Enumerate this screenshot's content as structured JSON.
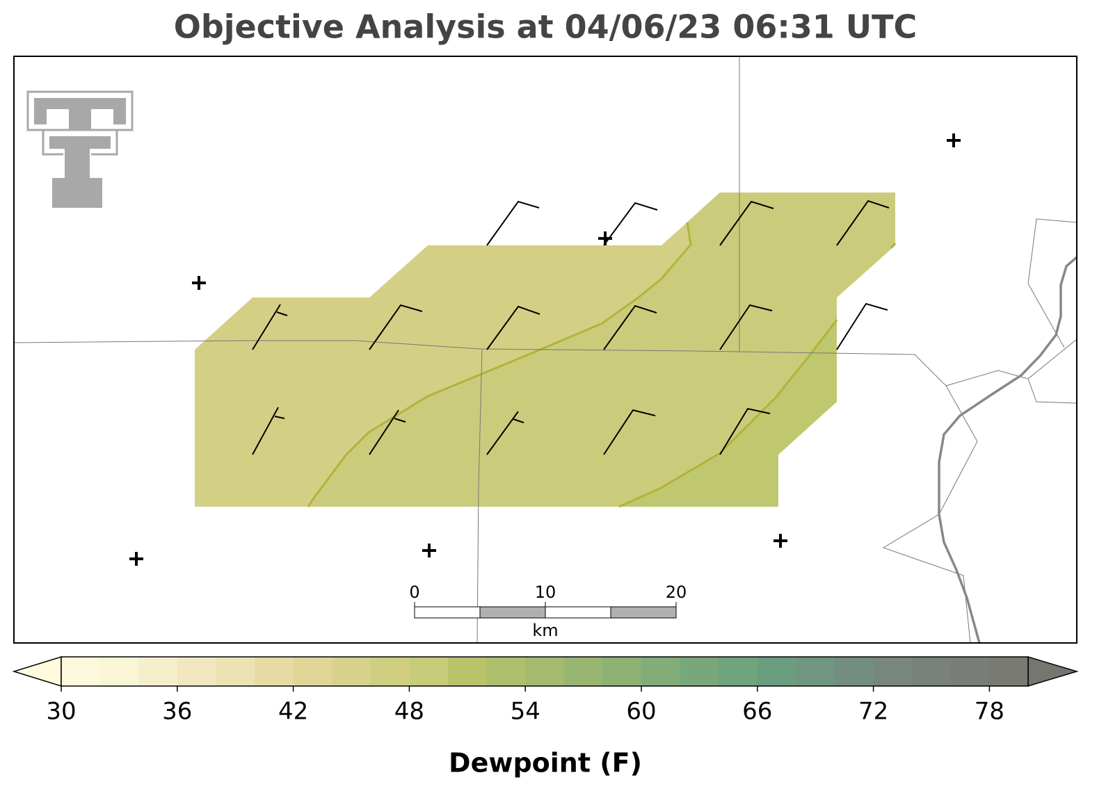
{
  "title": "Objective Analysis at 04/06/23 06:31 UTC",
  "colorbar": {
    "label": "Dewpoint (F)",
    "lim": [
      30,
      80
    ],
    "ticks": [
      30,
      36,
      42,
      48,
      54,
      60,
      66,
      72,
      78
    ],
    "colors": [
      "#fdf9dc",
      "#faf5d5",
      "#f6efcb",
      "#f1e8c0",
      "#ece2b4",
      "#e6dba4",
      "#e0d698",
      "#d8d28c",
      "#d0cf80",
      "#c6cc78",
      "#b8c46a",
      "#aec06c",
      "#a4bb6e",
      "#98b672",
      "#8eb274",
      "#82ad78",
      "#78a87a",
      "#70a47c",
      "#6a9e7e",
      "#6e9680",
      "#738e80",
      "#77877e",
      "#78827a",
      "#787e76",
      "#777b72"
    ],
    "under_color": "#fefade",
    "over_color": "#737770"
  },
  "scale_bar": {
    "ticks": [
      0,
      10,
      20
    ],
    "unit": "km"
  }
}
